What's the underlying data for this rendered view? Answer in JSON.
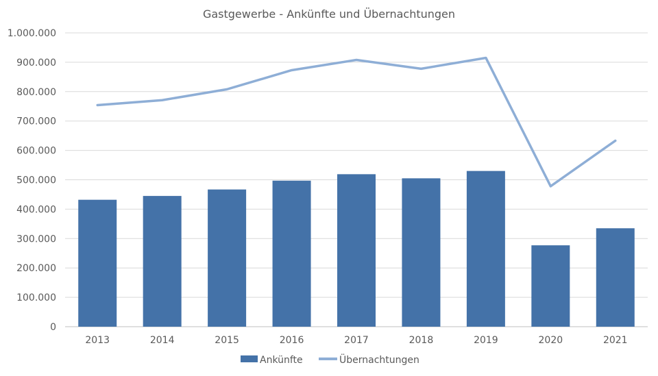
{
  "chart_data": {
    "type": "bar",
    "title": "Gastgewerbe - Ankünfte und Übernachtungen",
    "xlabel": "",
    "ylabel": "",
    "categories": [
      "2013",
      "2014",
      "2015",
      "2016",
      "2017",
      "2018",
      "2019",
      "2020",
      "2021"
    ],
    "ylim": [
      0,
      1000000
    ],
    "yticks": [
      0,
      100000,
      200000,
      300000,
      400000,
      500000,
      600000,
      700000,
      800000,
      900000,
      1000000
    ],
    "ytick_labels": [
      "0",
      "100.000",
      "200.000",
      "300.000",
      "400.000",
      "500.000",
      "600.000",
      "700.000",
      "800.000",
      "900.000",
      "1.000.000"
    ],
    "grid": true,
    "legend_position": "bottom",
    "series": [
      {
        "name": "Ankünfte",
        "type": "bar",
        "color": "#4472a8",
        "values": [
          432000,
          445000,
          467000,
          497000,
          519000,
          505000,
          530000,
          277000,
          335000
        ]
      },
      {
        "name": "Übernachtungen",
        "type": "line",
        "color": "#8eaed6",
        "values": [
          754000,
          771000,
          808000,
          873000,
          908000,
          878000,
          915000,
          478000,
          633000
        ]
      }
    ]
  }
}
